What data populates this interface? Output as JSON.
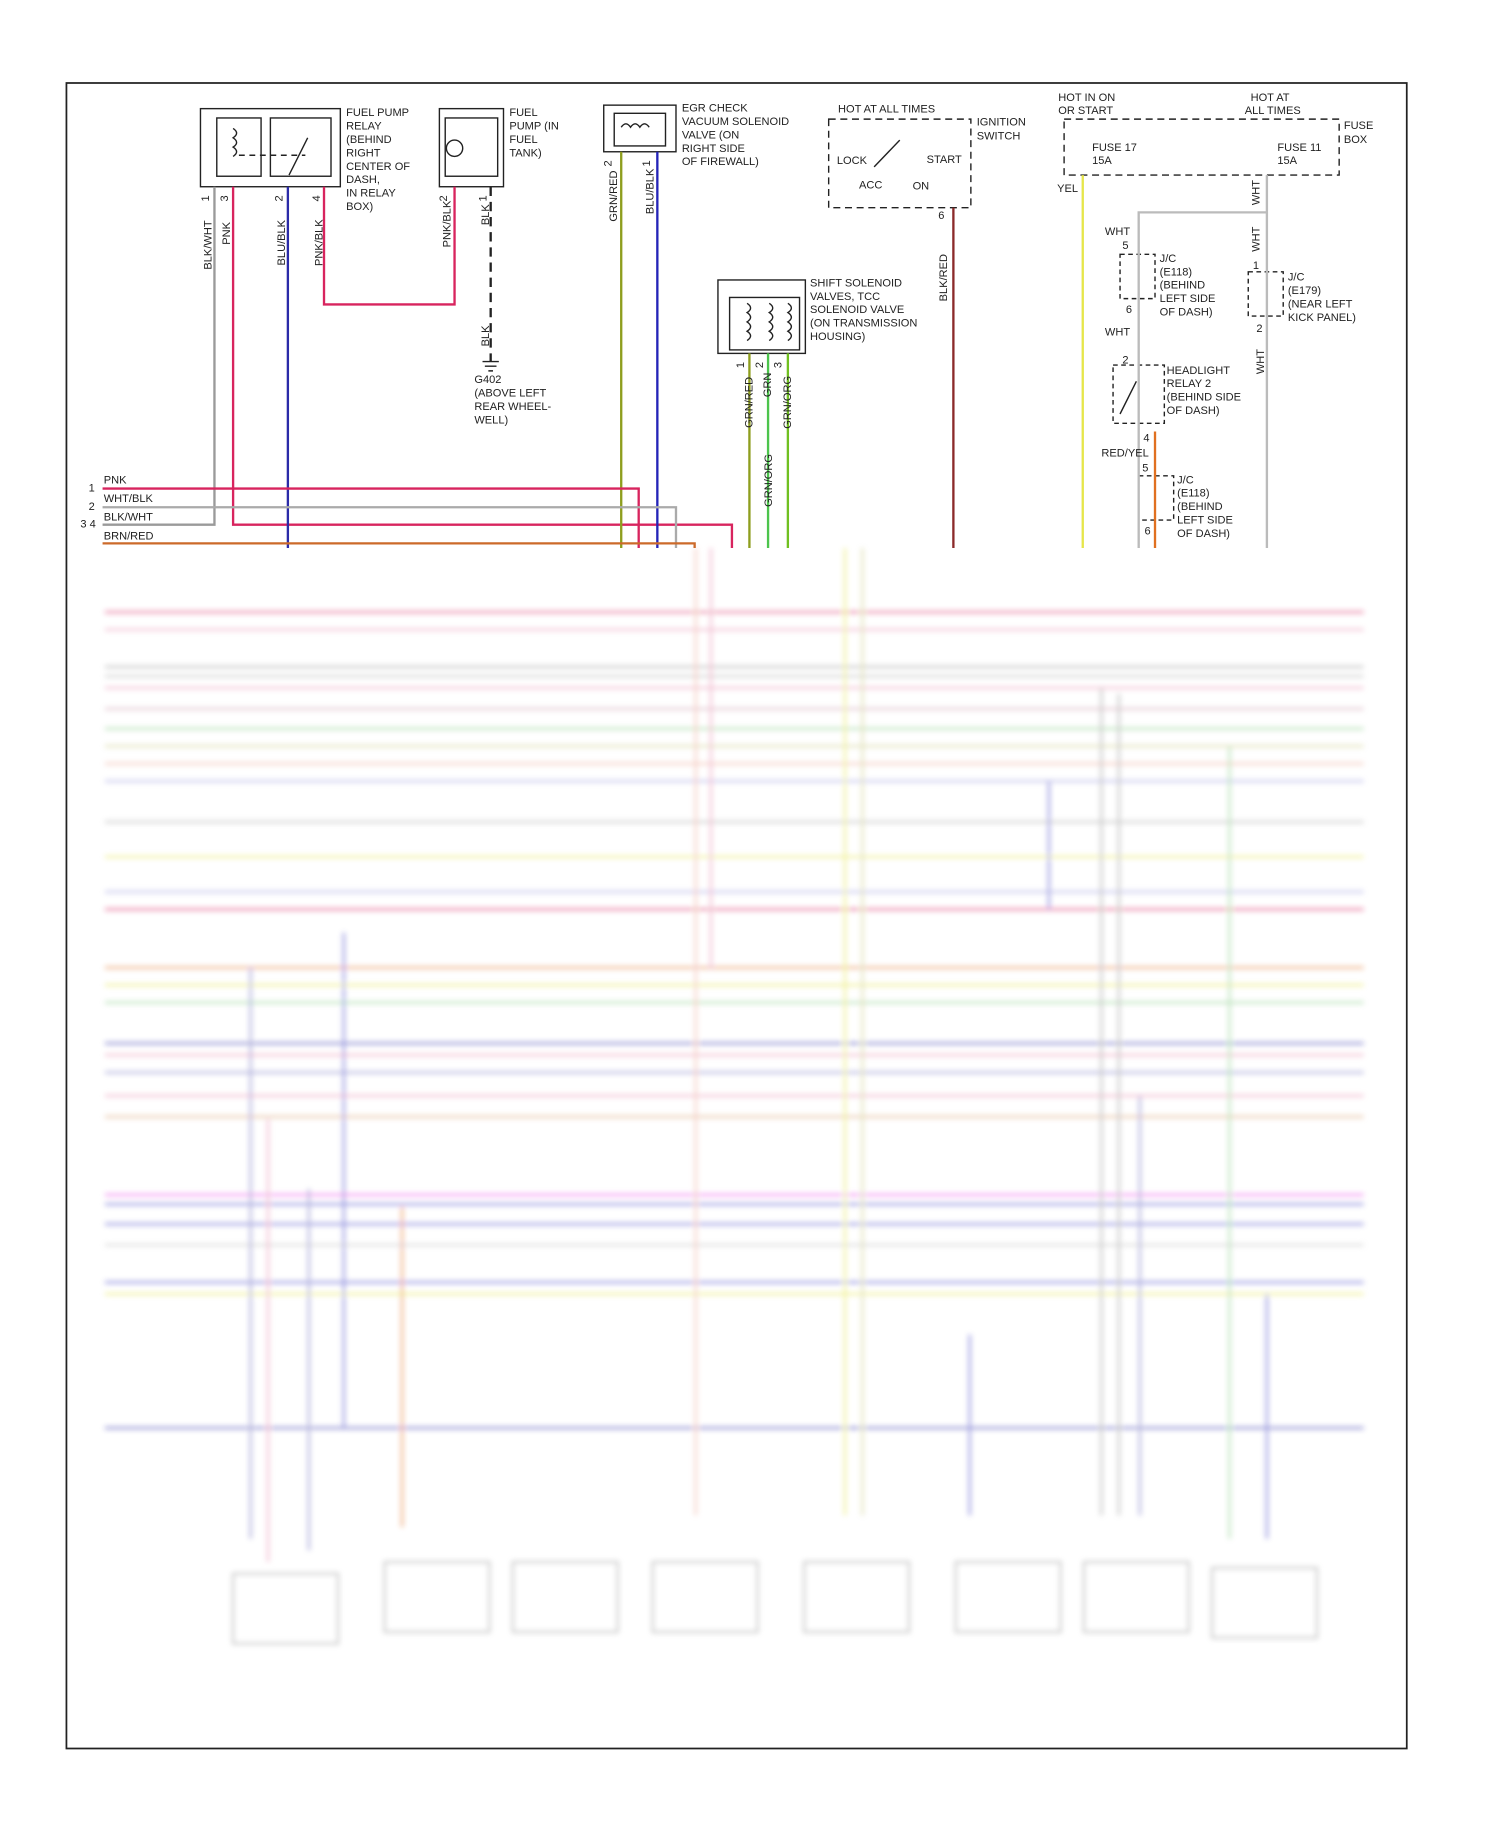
{
  "fuel_pump_relay": {
    "label": [
      "FUEL PUMP",
      "RELAY",
      "(BEHIND",
      "RIGHT",
      "CENTER OF",
      "DASH,",
      "IN RELAY",
      "BOX)"
    ],
    "pins": [
      "1",
      "3",
      "2",
      "4"
    ],
    "wires": [
      "BLK/WHT",
      "PNK",
      "BLU/BLK",
      "PNK/BLK"
    ]
  },
  "fuel_pump": {
    "label": [
      "FUEL",
      "PUMP (IN",
      "FUEL",
      "TANK)"
    ],
    "pins": [
      "2",
      "1"
    ],
    "wires": [
      "PNK/BLK",
      "BLK"
    ],
    "ground_wire": "BLK",
    "ground": [
      "G402",
      "(ABOVE LEFT",
      "REAR WHEEL-",
      "WELL)"
    ]
  },
  "egr_valve": {
    "label": [
      "EGR CHECK",
      "VACUUM SOLENOID",
      "VALVE (ON",
      "RIGHT SIDE",
      "OF FIREWALL)"
    ],
    "pins": [
      "2",
      "1"
    ],
    "wires": [
      "GRN/RED",
      "BLU/BLK"
    ]
  },
  "ignition_switch": {
    "supply": "HOT AT ALL TIMES",
    "label": [
      "IGNITION",
      "SWITCH"
    ],
    "positions": [
      "LOCK",
      "START",
      "ACC",
      "ON"
    ],
    "pin": "6",
    "wire": "BLK/RED"
  },
  "fuse_box": {
    "label": [
      "FUSE",
      "BOX"
    ],
    "feeds": [
      [
        "HOT IN ON",
        "OR START"
      ],
      [
        "HOT AT",
        "ALL TIMES"
      ]
    ],
    "fuses": [
      {
        "name": "FUSE 17",
        "rating": "15A",
        "wire": "YEL"
      },
      {
        "name": "FUSE 11",
        "rating": "15A",
        "wire": "WHT"
      }
    ]
  },
  "shift_solenoids": {
    "label": [
      "SHIFT SOLENOID",
      "VALVES, TCC",
      "SOLENOID VALVE",
      "(ON TRANSMISSION",
      "HOUSING)"
    ],
    "pins": [
      "1",
      "2",
      "3"
    ],
    "wires": [
      "GRN/RED",
      "GRN",
      "GRN/ORG",
      "GRN/ORG"
    ]
  },
  "junction_e118_a": {
    "wire_in": "WHT",
    "pin_in": "5",
    "label": [
      "J/C",
      "(E118)",
      "(BEHIND",
      "LEFT SIDE",
      "OF DASH)"
    ],
    "pin_out": "6",
    "wire_out": "WHT"
  },
  "junction_e179": {
    "wire_in": "WHT",
    "pin_in": "1",
    "label": [
      "J/C",
      "(E179)",
      "(NEAR LEFT",
      "KICK PANEL)"
    ],
    "pin_out": "2",
    "wire_out": "WHT"
  },
  "headlight_relay": {
    "pin_in": "2",
    "label": [
      "HEADLIGHT",
      "RELAY 2",
      "(BEHIND SIDE",
      "OF DASH)"
    ],
    "pin_out": "4",
    "wire_out": "RED/YEL"
  },
  "junction_e118_b": {
    "pin_in": "5",
    "label": [
      "J/C",
      "(E118)",
      "(BEHIND",
      "LEFT SIDE",
      "OF DASH)"
    ],
    "pin_out": "6"
  },
  "connector": {
    "pins": [
      "1",
      "2",
      "3 4"
    ],
    "wires": [
      "PNK",
      "WHT/BLK",
      "BLK/WHT",
      "BRN/RED"
    ]
  }
}
